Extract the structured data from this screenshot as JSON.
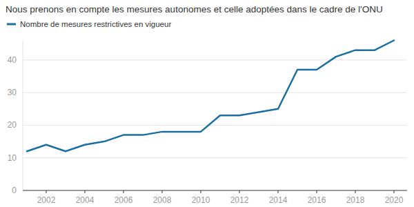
{
  "chart_data": {
    "type": "line",
    "title": "Nous prenons en compte les mesures autonomes et celle adoptées dans le cadre de l'ONU",
    "x": [
      2001,
      2002,
      2003,
      2004,
      2005,
      2006,
      2007,
      2008,
      2009,
      2010,
      2011,
      2012,
      2013,
      2014,
      2015,
      2016,
      2017,
      2018,
      2019,
      2020
    ],
    "series": [
      {
        "name": "Nombre de mesures restrictives en vigueur",
        "color": "#1b6fa0",
        "values": [
          12,
          14,
          12,
          14,
          15,
          17,
          17,
          18,
          18,
          18,
          23,
          23,
          24,
          25,
          37,
          37,
          41,
          43,
          43,
          46
        ]
      }
    ],
    "xlim": [
      2001,
      2020
    ],
    "xticks": [
      2002,
      2004,
      2006,
      2008,
      2010,
      2012,
      2014,
      2016,
      2018,
      2020
    ],
    "ylim": [
      0,
      46
    ],
    "yticks": [
      0,
      10,
      20,
      30,
      40
    ],
    "grid": true,
    "legend": "top-left"
  }
}
